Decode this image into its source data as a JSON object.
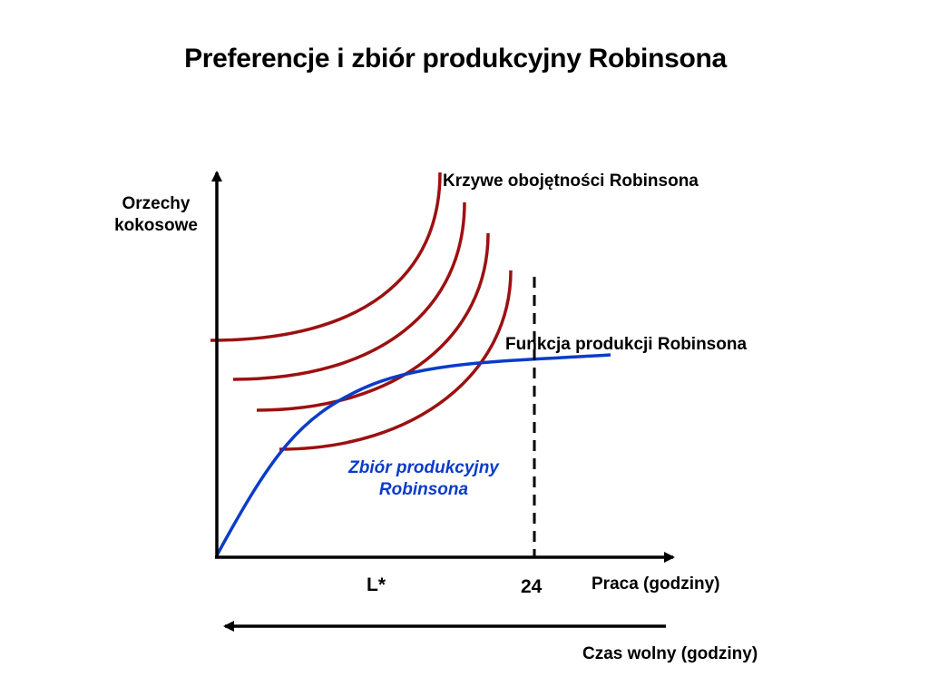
{
  "title": "Preferencje i zbiór produkcyjny Robinsona",
  "axes": {
    "y_label_line1": "Orzechy",
    "y_label_line2": "kokosowe",
    "x_label": "Praca (godziny)",
    "leisure_label": "Czas wolny (godziny)",
    "leisure_arrow_direction": "left"
  },
  "labels": {
    "indifference_curves": "Krzywe obojętności Robinsona",
    "production_function": "Funkcja produkcji Robinsona",
    "production_set_line1": "Zbiór produkcyjny",
    "production_set_line2": "Robinsona",
    "l_star": "L*",
    "max_hours": "24"
  },
  "colors": {
    "indifference_curve": "#9b1111",
    "production_function": "#0a3cc8",
    "axes": "#000000",
    "dashed_line": "#000000"
  },
  "indifference_curve_count": 4
}
